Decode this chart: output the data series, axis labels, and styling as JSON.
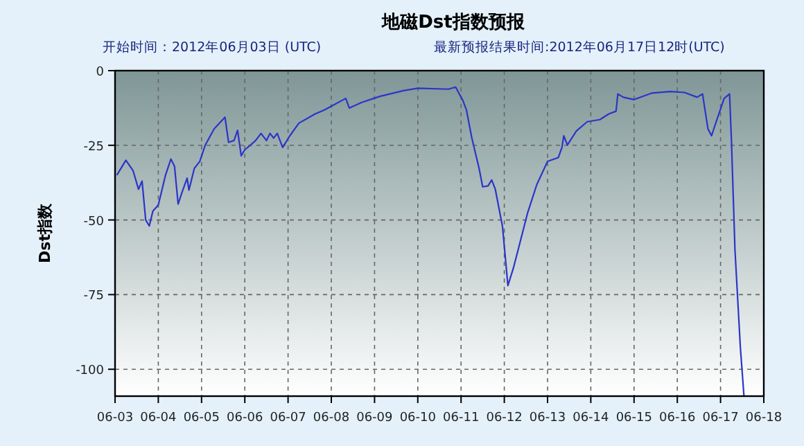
{
  "chart_data": {
    "type": "line",
    "title": "地磁Dst指数预报",
    "subtitle": "开始时间：2012年06月03日 (UTC)",
    "annotations": [
      "最新预报结果时间:2012年06月17日12时(UTC)"
    ],
    "ylabel": "Dst指数",
    "xlim": [
      "2012-06-03",
      "2012-06-18"
    ],
    "ylim": [
      -109,
      0
    ],
    "xticks": [
      {
        "value": "2012-06-03",
        "label": "06-03"
      },
      {
        "value": "2012-06-04",
        "label": "06-04"
      },
      {
        "value": "2012-06-05",
        "label": "06-05"
      },
      {
        "value": "2012-06-06",
        "label": "06-06"
      },
      {
        "value": "2012-06-07",
        "label": "06-07"
      },
      {
        "value": "2012-06-08",
        "label": "06-08"
      },
      {
        "value": "2012-06-09",
        "label": "06-09"
      },
      {
        "value": "2012-06-10",
        "label": "06-10"
      },
      {
        "value": "2012-06-11",
        "label": "06-11"
      },
      {
        "value": "2012-06-12",
        "label": "06-12"
      },
      {
        "value": "2012-06-13",
        "label": "06-13"
      },
      {
        "value": "2012-06-14",
        "label": "06-14"
      },
      {
        "value": "2012-06-15",
        "label": "06-15"
      },
      {
        "value": "2012-06-16",
        "label": "06-16"
      },
      {
        "value": "2012-06-17",
        "label": "06-17"
      },
      {
        "value": "2012-06-18",
        "label": "06-18"
      }
    ],
    "yticks": [
      0,
      -25,
      -50,
      -75,
      -100
    ],
    "grid": true,
    "marker": "none",
    "line_style": "solid",
    "series": [
      {
        "color": "#2b35c8",
        "x": [
          "2012-06-03T01:00",
          "2012-06-03T06:00",
          "2012-06-03T10:00",
          "2012-06-03T13:00",
          "2012-06-03T15:00",
          "2012-06-03T17:00",
          "2012-06-03T19:00",
          "2012-06-03T21:00",
          "2012-06-04T00:00",
          "2012-06-04T04:00",
          "2012-06-04T07:00",
          "2012-06-04T09:00",
          "2012-06-04T11:00",
          "2012-06-04T13:00",
          "2012-06-04T16:00",
          "2012-06-04T17:00",
          "2012-06-04T20:00",
          "2012-06-04T23:00",
          "2012-06-05T02:00",
          "2012-06-05T07:00",
          "2012-06-05T13:00",
          "2012-06-05T15:00",
          "2012-06-05T18:00",
          "2012-06-05T20:00",
          "2012-06-05T22:00",
          "2012-06-06T00:00",
          "2012-06-06T03:00",
          "2012-06-06T06:00",
          "2012-06-06T09:00",
          "2012-06-06T12:00",
          "2012-06-06T14:00",
          "2012-06-06T16:00",
          "2012-06-06T18:00",
          "2012-06-06T21:00",
          "2012-06-07T01:00",
          "2012-06-07T06:00",
          "2012-06-07T15:00",
          "2012-06-07T20:00",
          "2012-06-08T08:00",
          "2012-06-08T10:00",
          "2012-06-08T17:00",
          "2012-06-09T03:00",
          "2012-06-09T16:00",
          "2012-06-10T00:00",
          "2012-06-10T17:00",
          "2012-06-10T21:00",
          "2012-06-11T01:00",
          "2012-06-11T03:00",
          "2012-06-11T06:00",
          "2012-06-11T10:00",
          "2012-06-11T12:00",
          "2012-06-11T15:00",
          "2012-06-11T17:00",
          "2012-06-11T19:00",
          "2012-06-11T23:00",
          "2012-06-12T02:00",
          "2012-06-12T05:00",
          "2012-06-12T09:00",
          "2012-06-12T13:00",
          "2012-06-12T18:00",
          "2012-06-13T00:00",
          "2012-06-13T06:00",
          "2012-06-13T08:00",
          "2012-06-13T09:00",
          "2012-06-13T11:00",
          "2012-06-13T16:00",
          "2012-06-13T22:00",
          "2012-06-14T05:00",
          "2012-06-14T10:00",
          "2012-06-14T14:00",
          "2012-06-14T15:00",
          "2012-06-14T18:00",
          "2012-06-15T00:00",
          "2012-06-15T10:00",
          "2012-06-15T20:00",
          "2012-06-16T04:00",
          "2012-06-16T11:00",
          "2012-06-16T14:00",
          "2012-06-16T17:00",
          "2012-06-16T19:00",
          "2012-06-16T22:00",
          "2012-06-17T02:00",
          "2012-06-17T05:00",
          "2012-06-17T06:00",
          "2012-06-17T08:00",
          "2012-06-17T11:00",
          "2012-06-17T13:00"
        ],
        "values": [
          -35,
          -30,
          -33.5,
          -39.7,
          -37,
          -50,
          -52,
          -47,
          -45,
          -35,
          -29.6,
          -32,
          -44.7,
          -41,
          -36,
          -40,
          -32.7,
          -30.4,
          -25,
          -19.5,
          -15.6,
          -24,
          -23.4,
          -20,
          -28.5,
          -26.5,
          -25,
          -23.4,
          -21,
          -23.4,
          -21,
          -22.6,
          -21,
          -25.7,
          -21.8,
          -17.6,
          -14.5,
          -13.2,
          -9.3,
          -12.5,
          -10.6,
          -8.6,
          -6.7,
          -5.9,
          -6.2,
          -5.5,
          -10,
          -13.2,
          -22.6,
          -32.7,
          -38.9,
          -38.6,
          -36.6,
          -39.7,
          -52.2,
          -72,
          -66.2,
          -56.9,
          -47.5,
          -38.2,
          -30.4,
          -29.1,
          -25.7,
          -21.8,
          -24.9,
          -20.2,
          -17.1,
          -16.4,
          -14.5,
          -13.6,
          -7.8,
          -8.9,
          -9.7,
          -7.5,
          -7,
          -7.3,
          -8.9,
          -7.8,
          -19.5,
          -21.8,
          -16.4,
          -9.3,
          -7.8,
          -22.6,
          -60,
          -92.7,
          -109
        ]
      }
    ]
  }
}
